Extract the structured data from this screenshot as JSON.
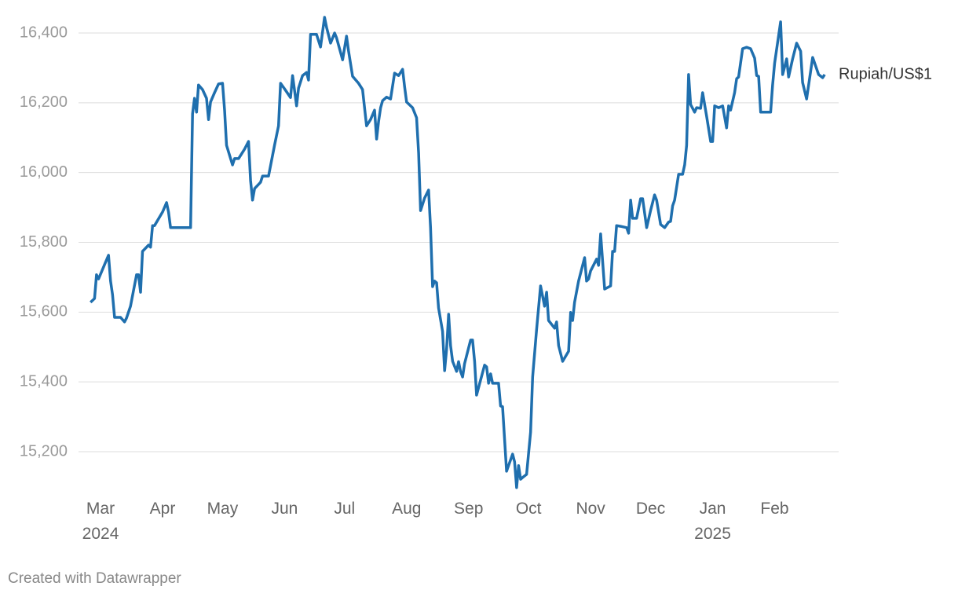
{
  "chart_data": {
    "type": "line",
    "x": [
      "2024-02-25",
      "2024-02-27",
      "2024-02-28",
      "2024-02-29",
      "2024-03-03",
      "2024-03-05",
      "2024-03-06",
      "2024-03-07",
      "2024-03-08",
      "2024-03-11",
      "2024-03-13",
      "2024-03-14",
      "2024-03-16",
      "2024-03-19",
      "2024-03-20",
      "2024-03-21",
      "2024-03-22",
      "2024-03-25",
      "2024-03-26",
      "2024-03-27",
      "2024-03-28",
      "2024-04-01",
      "2024-04-03",
      "2024-04-04",
      "2024-04-05",
      "2024-04-15",
      "2024-04-16",
      "2024-04-17",
      "2024-04-18",
      "2024-04-19",
      "2024-04-21",
      "2024-04-23",
      "2024-04-24",
      "2024-04-25",
      "2024-04-27",
      "2024-04-29",
      "2024-05-01",
      "2024-05-02",
      "2024-05-03",
      "2024-05-06",
      "2024-05-07",
      "2024-05-09",
      "2024-05-12",
      "2024-05-14",
      "2024-05-15",
      "2024-05-16",
      "2024-05-17",
      "2024-05-20",
      "2024-05-21",
      "2024-05-24",
      "2024-05-27",
      "2024-05-29",
      "2024-05-30",
      "2024-06-01",
      "2024-06-04",
      "2024-06-05",
      "2024-06-07",
      "2024-06-08",
      "2024-06-10",
      "2024-06-12",
      "2024-06-13",
      "2024-06-14",
      "2024-06-17",
      "2024-06-19",
      "2024-06-21",
      "2024-06-22",
      "2024-06-24",
      "2024-06-26",
      "2024-06-27",
      "2024-06-30",
      "2024-07-02",
      "2024-07-03",
      "2024-07-05",
      "2024-07-08",
      "2024-07-10",
      "2024-07-12",
      "2024-07-14",
      "2024-07-16",
      "2024-07-17",
      "2024-07-18",
      "2024-07-19",
      "2024-07-20",
      "2024-07-22",
      "2024-07-24",
      "2024-07-26",
      "2024-07-28",
      "2024-07-30",
      "2024-07-31",
      "2024-08-01",
      "2024-08-04",
      "2024-08-06",
      "2024-08-07",
      "2024-08-08",
      "2024-08-10",
      "2024-08-12",
      "2024-08-13",
      "2024-08-14",
      "2024-08-15",
      "2024-08-16",
      "2024-08-17",
      "2024-08-19",
      "2024-08-20",
      "2024-08-21",
      "2024-08-22",
      "2024-08-23",
      "2024-08-24",
      "2024-08-26",
      "2024-08-27",
      "2024-08-28",
      "2024-08-29",
      "2024-08-30",
      "2024-09-02",
      "2024-09-03",
      "2024-09-04",
      "2024-09-05",
      "2024-09-09",
      "2024-09-10",
      "2024-09-11",
      "2024-09-12",
      "2024-09-13",
      "2024-09-16",
      "2024-09-17",
      "2024-09-18",
      "2024-09-20",
      "2024-09-23",
      "2024-09-24",
      "2024-09-25",
      "2024-09-26",
      "2024-09-27",
      "2024-09-28",
      "2024-09-30",
      "2024-10-02",
      "2024-10-03",
      "2024-10-05",
      "2024-10-07",
      "2024-10-09",
      "2024-10-10",
      "2024-10-11",
      "2024-10-14",
      "2024-10-15",
      "2024-10-16",
      "2024-10-18",
      "2024-10-21",
      "2024-10-22",
      "2024-10-23",
      "2024-10-24",
      "2024-10-26",
      "2024-10-29",
      "2024-10-30",
      "2024-10-31",
      "2024-11-01",
      "2024-11-04",
      "2024-11-05",
      "2024-11-06",
      "2024-11-08",
      "2024-11-11",
      "2024-11-12",
      "2024-11-13",
      "2024-11-14",
      "2024-11-16",
      "2024-11-19",
      "2024-11-20",
      "2024-11-21",
      "2024-11-22",
      "2024-11-24",
      "2024-11-26",
      "2024-11-27",
      "2024-11-29",
      "2024-12-01",
      "2024-12-03",
      "2024-12-04",
      "2024-12-06",
      "2024-12-08",
      "2024-12-10",
      "2024-12-11",
      "2024-12-12",
      "2024-12-13",
      "2024-12-15",
      "2024-12-17",
      "2024-12-18",
      "2024-12-19",
      "2024-12-20",
      "2024-12-21",
      "2024-12-23",
      "2024-12-24",
      "2024-12-26",
      "2024-12-27",
      "2024-12-29",
      "2024-12-31",
      "2025-01-01",
      "2025-01-02",
      "2025-01-04",
      "2025-01-06",
      "2025-01-08",
      "2025-01-09",
      "2025-01-10",
      "2025-01-12",
      "2025-01-13",
      "2025-01-14",
      "2025-01-16",
      "2025-01-18",
      "2025-01-20",
      "2025-01-22",
      "2025-01-23",
      "2025-01-24",
      "2025-01-25",
      "2025-01-30",
      "2025-01-31",
      "2025-02-01",
      "2025-02-04",
      "2025-02-05",
      "2025-02-07",
      "2025-02-08",
      "2025-02-10",
      "2025-02-12",
      "2025-02-14",
      "2025-02-15",
      "2025-02-17",
      "2025-02-20",
      "2025-02-21",
      "2025-02-23",
      "2025-02-25",
      "2025-02-26"
    ],
    "series": [
      {
        "name": "Rupiah/US$1",
        "color": "#1f6fae",
        "values": [
          15628,
          15639,
          15707,
          15695,
          15736,
          15763,
          15689,
          15650,
          15585,
          15585,
          15572,
          15583,
          15617,
          15707,
          15707,
          15657,
          15774,
          15792,
          15786,
          15848,
          15848,
          15887,
          15914,
          15887,
          15842,
          15842,
          16168,
          16213,
          16173,
          16251,
          16238,
          16213,
          16152,
          16202,
          16229,
          16254,
          16256,
          16179,
          16078,
          16022,
          16040,
          16040,
          16067,
          16089,
          15977,
          15921,
          15954,
          15972,
          15990,
          15990,
          16078,
          16134,
          16256,
          16240,
          16215,
          16278,
          16191,
          16242,
          16278,
          16287,
          16265,
          16396,
          16396,
          16360,
          16445,
          16416,
          16371,
          16400,
          16386,
          16323,
          16391,
          16348,
          16276,
          16256,
          16238,
          16134,
          16152,
          16179,
          16096,
          16146,
          16186,
          16206,
          16216,
          16211,
          16285,
          16278,
          16296,
          16247,
          16202,
          16186,
          16157,
          16056,
          15891,
          15927,
          15950,
          15842,
          15673,
          15689,
          15684,
          15612,
          15545,
          15432,
          15493,
          15594,
          15504,
          15459,
          15430,
          15458,
          15430,
          15414,
          15452,
          15520,
          15520,
          15459,
          15362,
          15448,
          15443,
          15396,
          15423,
          15396,
          15396,
          15331,
          15329,
          15144,
          15193,
          15171,
          15097,
          15160,
          15121,
          15126,
          15135,
          15256,
          15414,
          15549,
          15675,
          15617,
          15657,
          15576,
          15554,
          15572,
          15504,
          15459,
          15488,
          15599,
          15576,
          15628,
          15689,
          15756,
          15689,
          15695,
          15718,
          15752,
          15734,
          15824,
          15666,
          15675,
          15774,
          15774,
          15848,
          15846,
          15842,
          15826,
          15921,
          15869,
          15869,
          15925,
          15925,
          15842,
          15891,
          15936,
          15921,
          15851,
          15842,
          15858,
          15860,
          15905,
          15921,
          15995,
          15995,
          16022,
          16078,
          16281,
          16195,
          16173,
          16186,
          16184,
          16229,
          16161,
          16089,
          16089,
          16191,
          16186,
          16191,
          16128,
          16191,
          16179,
          16229,
          16269,
          16274,
          16355,
          16359,
          16355,
          16328,
          16278,
          16276,
          16173,
          16173,
          16251,
          16314,
          16432,
          16281,
          16326,
          16274,
          16326,
          16371,
          16348,
          16258,
          16211,
          16330,
          16314,
          16281,
          16272,
          16281
        ]
      }
    ],
    "xlim": [
      "2024-02-19",
      "2025-03-05"
    ],
    "xticks": [
      {
        "value": "2024-03-01",
        "label": "Mar 2024"
      },
      {
        "value": "2024-04-01",
        "label": "Apr"
      },
      {
        "value": "2024-05-01",
        "label": "May"
      },
      {
        "value": "2024-06-01",
        "label": "Jun"
      },
      {
        "value": "2024-07-01",
        "label": "Jul"
      },
      {
        "value": "2024-08-01",
        "label": "Aug"
      },
      {
        "value": "2024-09-01",
        "label": "Sep"
      },
      {
        "value": "2024-10-01",
        "label": "Oct"
      },
      {
        "value": "2024-11-01",
        "label": "Nov"
      },
      {
        "value": "2024-12-01",
        "label": "Dec"
      },
      {
        "value": "2025-01-01",
        "label": "Jan 2025"
      },
      {
        "value": "2025-02-01",
        "label": "Feb"
      }
    ],
    "ylim": [
      15100,
      16450
    ],
    "yticks": [
      {
        "value": 15200,
        "label": "15,200"
      },
      {
        "value": 15400,
        "label": "15,400"
      },
      {
        "value": 15600,
        "label": "15,600"
      },
      {
        "value": 15800,
        "label": "15,800"
      },
      {
        "value": 16000,
        "label": "16,000"
      },
      {
        "value": 16200,
        "label": "16,200"
      },
      {
        "value": 16400,
        "label": "16,400"
      }
    ],
    "grid": true,
    "footer": "Created with Datawrapper"
  }
}
